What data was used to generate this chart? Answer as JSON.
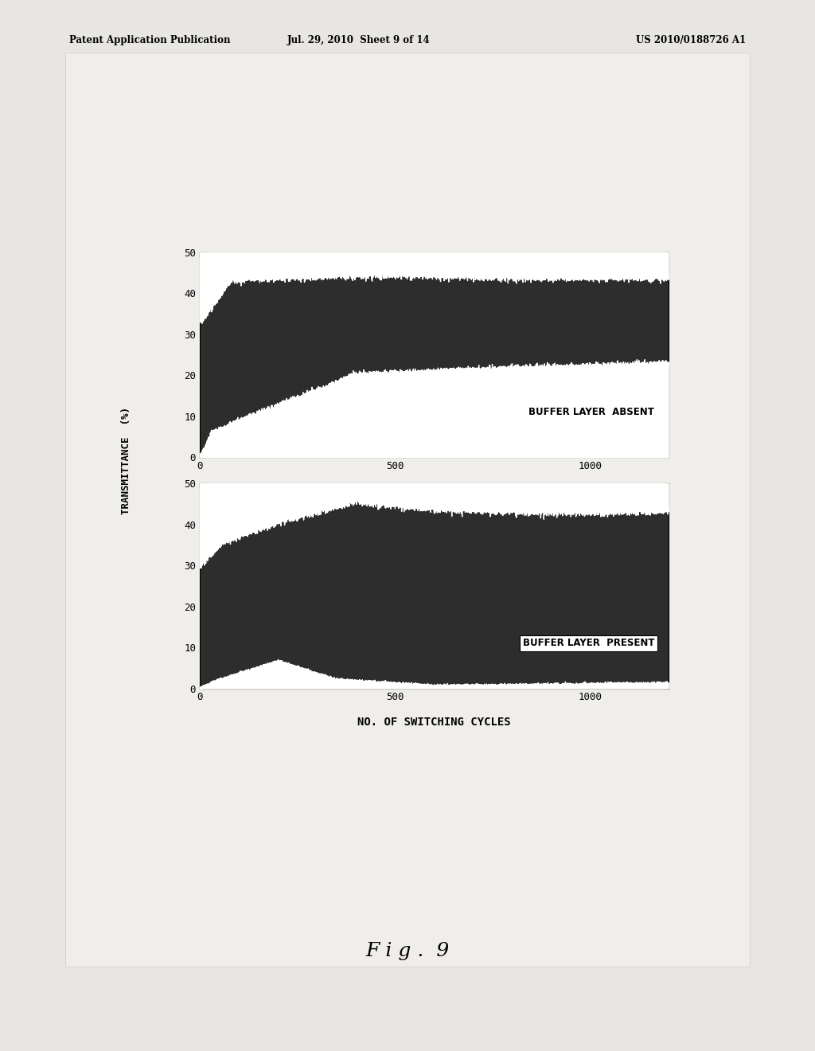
{
  "page_header_left": "Patent Application Publication",
  "page_header_mid": "Jul. 29, 2010  Sheet 9 of 14",
  "page_header_right": "US 2010/0188726 A1",
  "figure_label": "F i g .  9",
  "xlabel": "NO. OF SWITCHING CYCLES",
  "ylabel": "TRANSMITTANCE  (%)",
  "xlim": [
    0,
    1200
  ],
  "ylim": [
    0,
    50
  ],
  "xticks": [
    0,
    500,
    1000
  ],
  "yticks": [
    0,
    10,
    20,
    30,
    40,
    50
  ],
  "label_absent": "BUFFER LAYER  ABSENT",
  "label_present": "BUFFER LAYER  PRESENT",
  "fill_color": "#2d2d2d",
  "page_bg": "#e8e6e2",
  "plot_bg": "#f5f5f5"
}
